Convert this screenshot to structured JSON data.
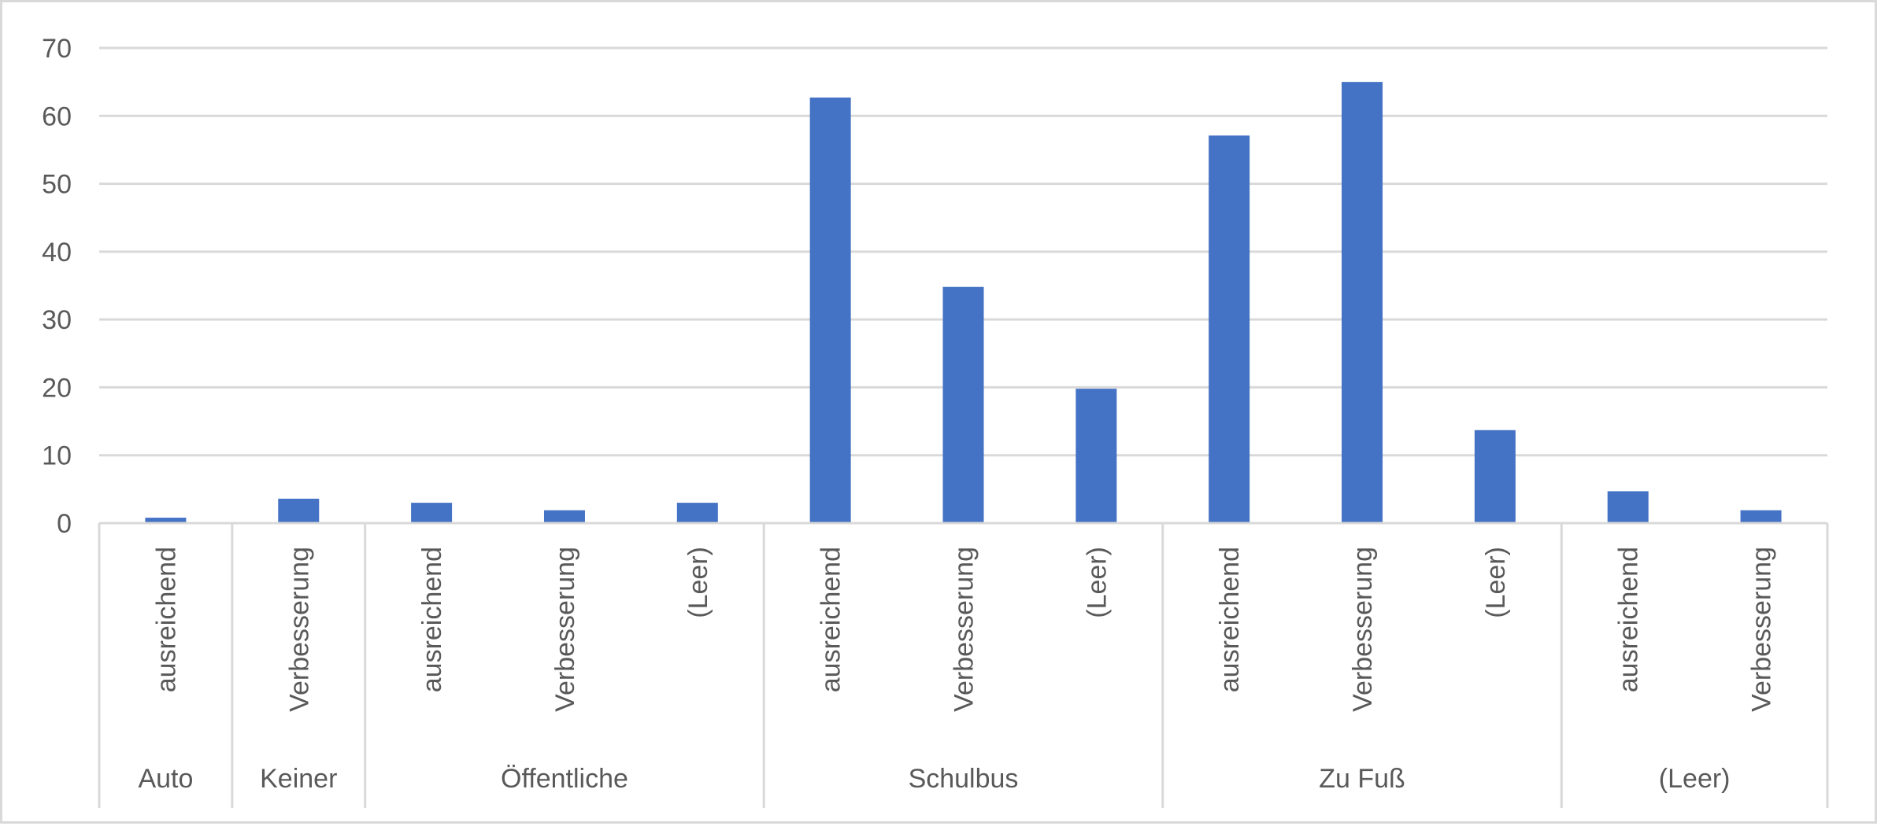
{
  "chart_data": {
    "type": "bar",
    "title": "",
    "xlabel": "",
    "ylabel": "",
    "ylim": [
      0,
      70
    ],
    "y_ticks": [
      0,
      10,
      20,
      30,
      40,
      50,
      60,
      70
    ],
    "grid": true,
    "legend": "none",
    "bar_color": "#4472c4",
    "groups": [
      {
        "name": "Auto",
        "categories": [
          "ausreichend"
        ],
        "values": [
          0.8
        ]
      },
      {
        "name": "Keiner",
        "categories": [
          "Verbesserung"
        ],
        "values": [
          3.6
        ]
      },
      {
        "name": "Öffentliche",
        "categories": [
          "ausreichend",
          "Verbesserung",
          "(Leer)"
        ],
        "values": [
          3.0,
          1.9,
          3.0
        ]
      },
      {
        "name": "Schulbus",
        "categories": [
          "ausreichend",
          "Verbesserung",
          "(Leer)"
        ],
        "values": [
          62.7,
          34.8,
          19.8
        ]
      },
      {
        "name": "Zu Fuß",
        "categories": [
          "ausreichend",
          "Verbesserung",
          "(Leer)"
        ],
        "values": [
          57.1,
          65.0,
          13.7
        ]
      },
      {
        "name": "(Leer)",
        "categories": [
          "ausreichend",
          "Verbesserung"
        ],
        "values": [
          4.7,
          1.9
        ]
      }
    ]
  }
}
